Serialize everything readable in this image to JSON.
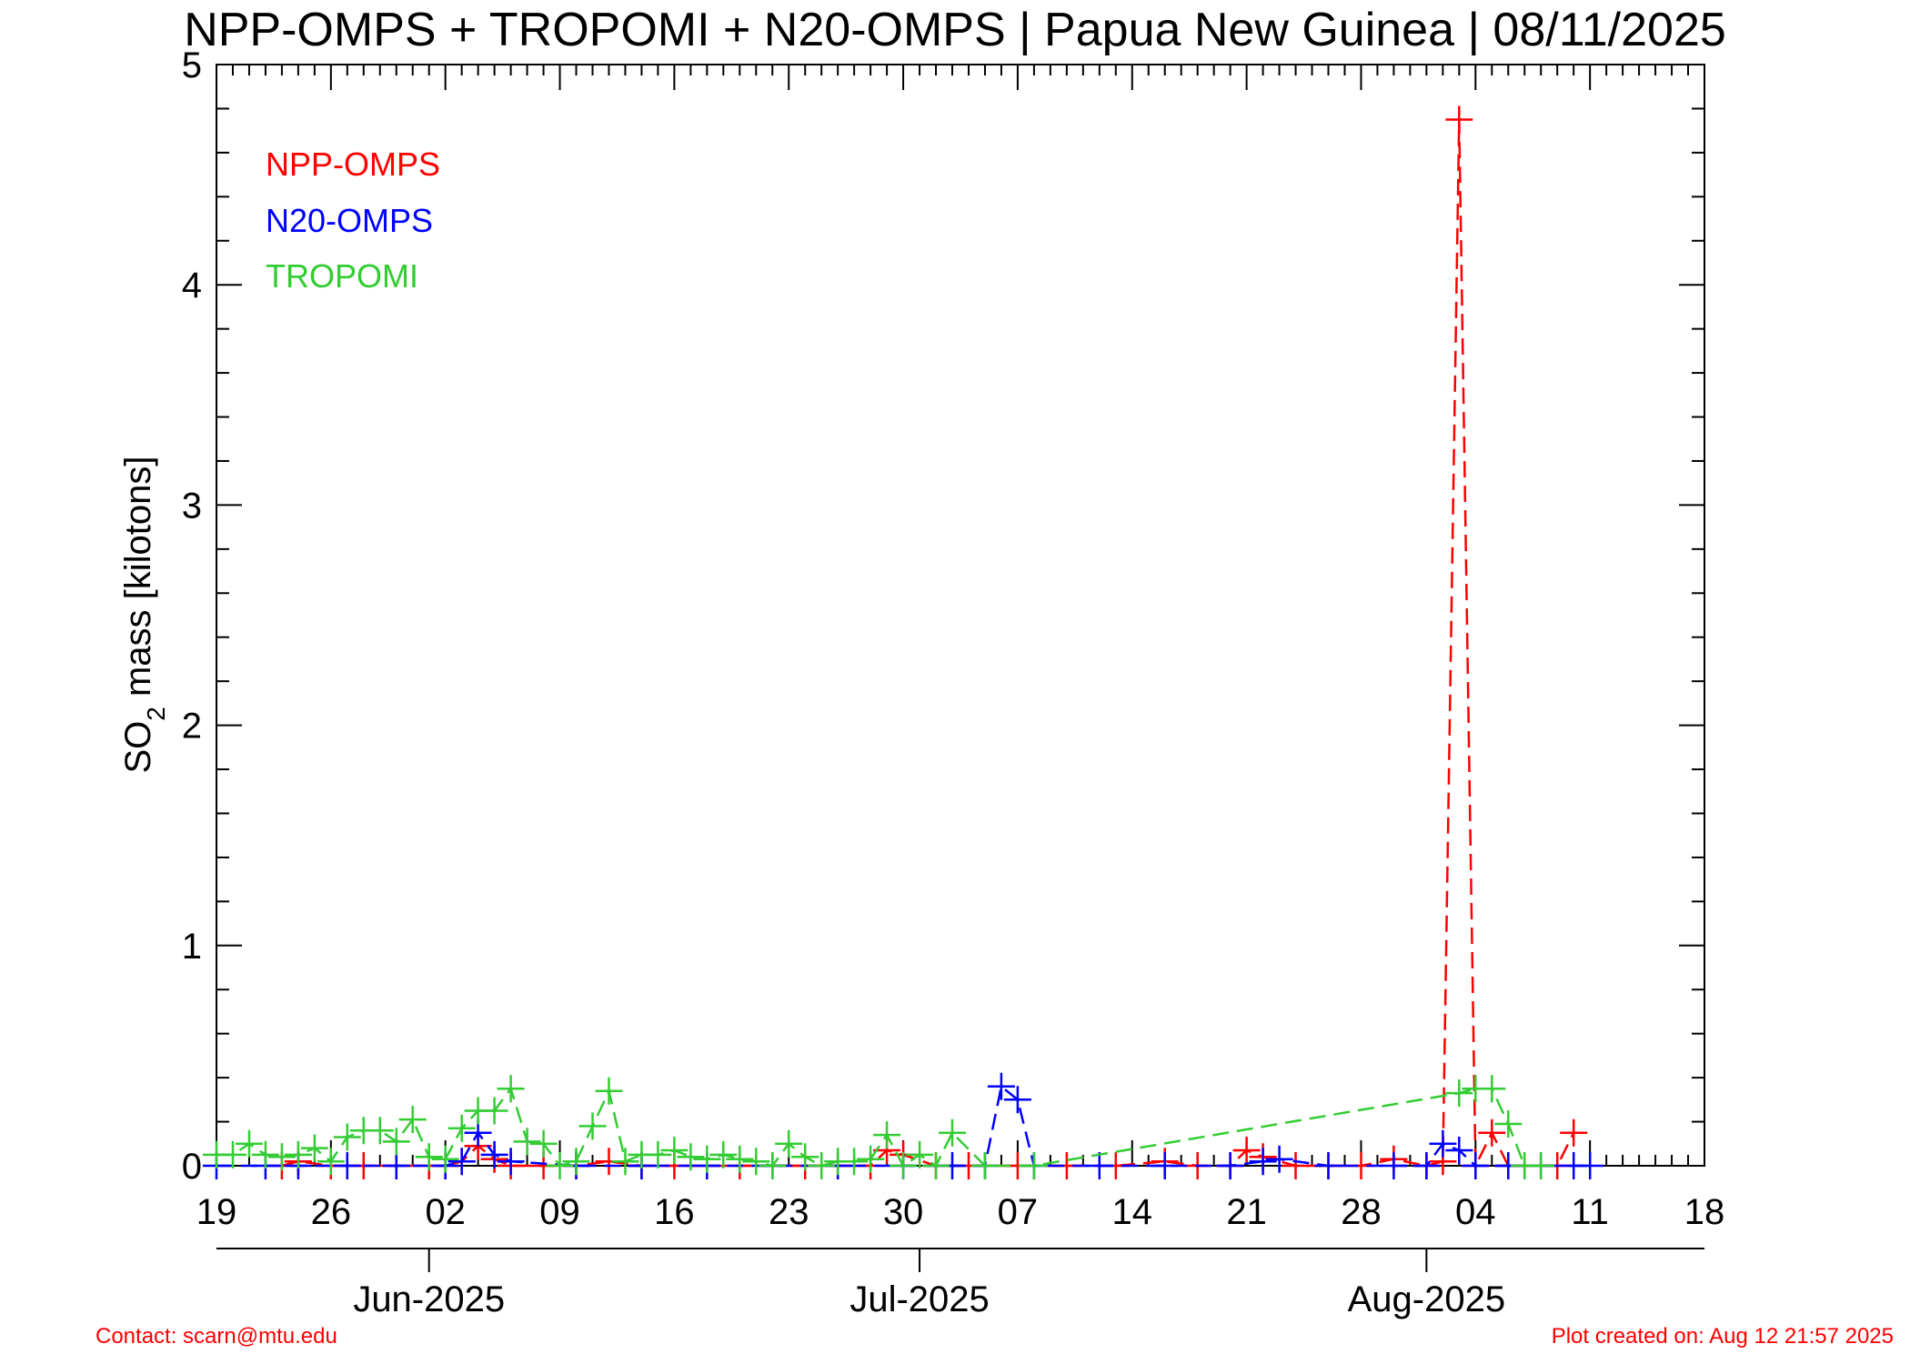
{
  "chart_data": {
    "type": "line",
    "title": "NPP-OMPS + TROPOMI + N20-OMPS | Papua New Guinea | 08/11/2025",
    "ylabel_main": "SO",
    "ylabel_sub": "2",
    "ylabel_rest": " mass [kilotons]",
    "ylim": [
      0,
      5
    ],
    "yticks": [
      "0",
      "1",
      "2",
      "3",
      "4",
      "5"
    ],
    "xlim": [
      "2025-05-19",
      "2025-08-18"
    ],
    "xticks": [
      {
        "date": "2025-05-19",
        "label": "19"
      },
      {
        "date": "2025-05-26",
        "label": "26"
      },
      {
        "date": "2025-06-02",
        "label": "02"
      },
      {
        "date": "2025-06-09",
        "label": "09"
      },
      {
        "date": "2025-06-16",
        "label": "16"
      },
      {
        "date": "2025-06-23",
        "label": "23"
      },
      {
        "date": "2025-06-30",
        "label": "30"
      },
      {
        "date": "2025-07-07",
        "label": "07"
      },
      {
        "date": "2025-07-14",
        "label": "14"
      },
      {
        "date": "2025-07-21",
        "label": "21"
      },
      {
        "date": "2025-07-28",
        "label": "28"
      },
      {
        "date": "2025-08-04",
        "label": "04"
      },
      {
        "date": "2025-08-11",
        "label": "11"
      },
      {
        "date": "2025-08-18",
        "label": "18"
      }
    ],
    "months": [
      {
        "date": "2025-06-01",
        "label": "Jun-2025"
      },
      {
        "date": "2025-07-01",
        "label": "Jul-2025"
      },
      {
        "date": "2025-08-01",
        "label": "Aug-2025"
      }
    ],
    "series": [
      {
        "name": "NPP-OMPS",
        "color": "#ff0000",
        "x": [
          "2025-05-23",
          "2025-05-24",
          "2025-05-26",
          "2025-05-28",
          "2025-05-30",
          "2025-06-01",
          "2025-06-02",
          "2025-06-03",
          "2025-06-04",
          "2025-06-05",
          "2025-06-06",
          "2025-06-08",
          "2025-06-10",
          "2025-06-12",
          "2025-06-14",
          "2025-06-16",
          "2025-06-18",
          "2025-06-20",
          "2025-06-22",
          "2025-06-24",
          "2025-06-26",
          "2025-06-28",
          "2025-06-29",
          "2025-06-30",
          "2025-07-02",
          "2025-07-04",
          "2025-07-07",
          "2025-07-10",
          "2025-07-13",
          "2025-07-16",
          "2025-07-18",
          "2025-07-20",
          "2025-07-21",
          "2025-07-22",
          "2025-07-24",
          "2025-07-26",
          "2025-07-28",
          "2025-07-30",
          "2025-08-01",
          "2025-08-02",
          "2025-08-03",
          "2025-08-04",
          "2025-08-05",
          "2025-08-06",
          "2025-08-07",
          "2025-08-08",
          "2025-08-09",
          "2025-08-10"
        ],
        "values": [
          0.0,
          0.02,
          0.0,
          0.0,
          0.0,
          0.0,
          0.0,
          0.02,
          0.09,
          0.03,
          0.0,
          0.0,
          0.0,
          0.02,
          0.0,
          0.0,
          0.0,
          0.0,
          0.0,
          0.0,
          0.0,
          0.0,
          0.07,
          0.05,
          0.0,
          0.0,
          0.0,
          0.0,
          0.0,
          0.02,
          0.0,
          0.0,
          0.07,
          0.04,
          0.0,
          0.0,
          0.0,
          0.03,
          0.0,
          0.02,
          4.75,
          0.0,
          0.15,
          0.0,
          0.0,
          0.0,
          0.0,
          0.15
        ]
      },
      {
        "name": "N20-OMPS",
        "color": "#0000ff",
        "x": [
          "2025-05-19",
          "2025-05-22",
          "2025-05-24",
          "2025-05-27",
          "2025-05-30",
          "2025-06-02",
          "2025-06-03",
          "2025-06-04",
          "2025-06-05",
          "2025-06-06",
          "2025-06-10",
          "2025-06-14",
          "2025-06-18",
          "2025-06-22",
          "2025-06-26",
          "2025-06-30",
          "2025-07-03",
          "2025-07-05",
          "2025-07-06",
          "2025-07-07",
          "2025-07-08",
          "2025-07-12",
          "2025-07-16",
          "2025-07-20",
          "2025-07-22",
          "2025-07-23",
          "2025-07-26",
          "2025-07-30",
          "2025-08-01",
          "2025-08-02",
          "2025-08-03",
          "2025-08-04",
          "2025-08-06",
          "2025-08-08",
          "2025-08-10",
          "2025-08-11"
        ],
        "values": [
          0.0,
          0.0,
          0.0,
          0.0,
          0.0,
          0.0,
          0.02,
          0.15,
          0.05,
          0.02,
          0.0,
          0.0,
          0.0,
          0.0,
          0.0,
          0.0,
          0.0,
          0.0,
          0.36,
          0.3,
          0.0,
          0.0,
          0.0,
          0.0,
          0.02,
          0.03,
          0.0,
          0.0,
          0.0,
          0.1,
          0.07,
          0.0,
          0.0,
          0.0,
          0.0,
          0.0
        ]
      },
      {
        "name": "TROPOMI",
        "color": "#33cc33",
        "x": [
          "2025-05-19",
          "2025-05-20",
          "2025-05-21",
          "2025-05-22",
          "2025-05-23",
          "2025-05-24",
          "2025-05-25",
          "2025-05-26",
          "2025-05-27",
          "2025-05-28",
          "2025-05-29",
          "2025-05-30",
          "2025-05-31",
          "2025-06-01",
          "2025-06-02",
          "2025-06-03",
          "2025-06-04",
          "2025-06-05",
          "2025-06-06",
          "2025-06-07",
          "2025-06-08",
          "2025-06-09",
          "2025-06-10",
          "2025-06-11",
          "2025-06-12",
          "2025-06-13",
          "2025-06-14",
          "2025-06-15",
          "2025-06-16",
          "2025-06-17",
          "2025-06-18",
          "2025-06-19",
          "2025-06-20",
          "2025-06-21",
          "2025-06-22",
          "2025-06-23",
          "2025-06-24",
          "2025-06-25",
          "2025-06-26",
          "2025-06-27",
          "2025-06-28",
          "2025-06-29",
          "2025-06-30",
          "2025-07-01",
          "2025-07-02",
          "2025-07-03",
          "2025-07-05",
          "2025-07-08",
          "2025-08-03",
          "2025-08-04",
          "2025-08-05",
          "2025-08-06",
          "2025-08-07",
          "2025-08-08"
        ],
        "values": [
          0.05,
          0.05,
          0.1,
          0.05,
          0.04,
          0.05,
          0.08,
          0.02,
          0.13,
          0.16,
          0.16,
          0.11,
          0.21,
          0.04,
          0.03,
          0.17,
          0.25,
          0.25,
          0.35,
          0.11,
          0.1,
          0.0,
          0.02,
          0.18,
          0.34,
          0.02,
          0.05,
          0.05,
          0.07,
          0.04,
          0.03,
          0.05,
          0.03,
          0.02,
          0.0,
          0.1,
          0.04,
          0.0,
          0.02,
          0.02,
          0.03,
          0.14,
          0.0,
          0.05,
          0.0,
          0.15,
          0.0,
          0.0,
          0.33,
          0.35,
          0.35,
          0.19,
          0.0,
          0.0
        ]
      }
    ],
    "legend": {
      "position": "top-left",
      "entries": [
        "NPP-OMPS",
        "N20-OMPS",
        "TROPOMI"
      ]
    }
  },
  "footer": {
    "contact": "Contact: scarn@mtu.edu",
    "created": "Plot created on: Aug 12 21:57 2025"
  }
}
